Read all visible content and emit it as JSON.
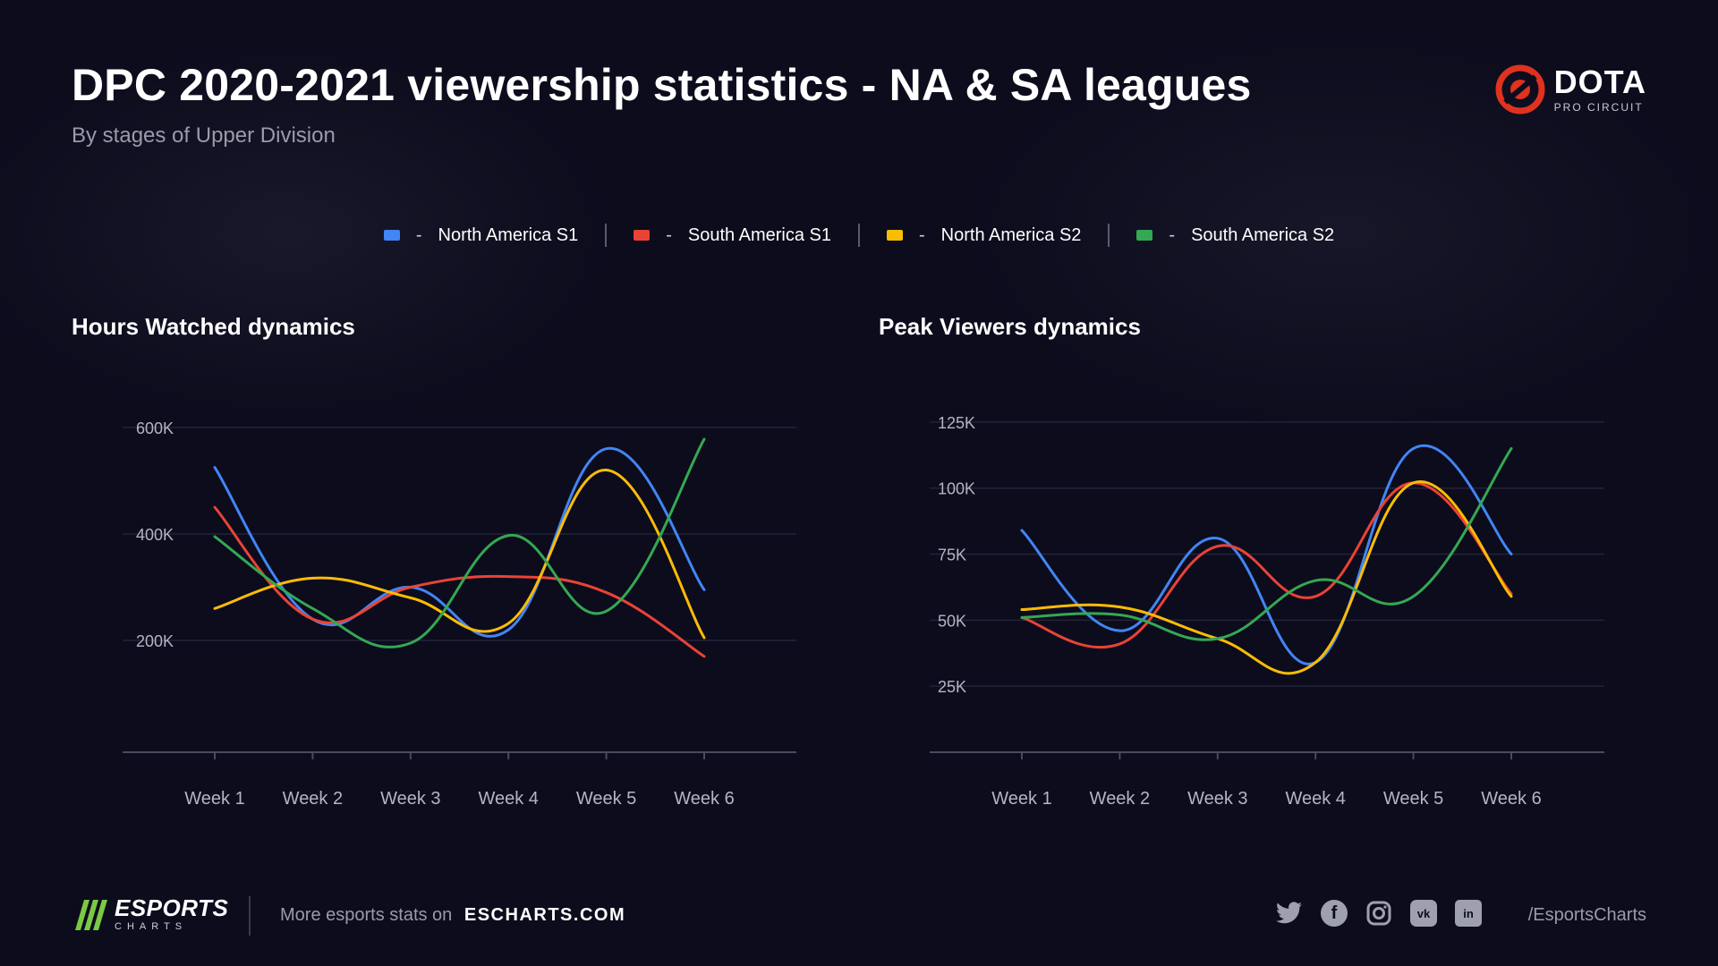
{
  "header": {
    "title": "DPC 2020-2021 viewership statistics - NA & SA leagues",
    "subtitle": "By stages of Upper Division",
    "logo_main": "DOTA",
    "logo_sub": "PRO CIRCUIT"
  },
  "legend": [
    {
      "label": "North America S1",
      "color": "#4285f4"
    },
    {
      "label": "South America S1",
      "color": "#ea4335"
    },
    {
      "label": "North America S2",
      "color": "#fbbc05"
    },
    {
      "label": "South America S2",
      "color": "#34a853"
    }
  ],
  "chart_data": [
    {
      "type": "line",
      "title": "Hours Watched dynamics",
      "categories": [
        "Week 1",
        "Week 2",
        "Week 3",
        "Week 4",
        "Week 5",
        "Week 6"
      ],
      "ylim": [
        -10000,
        620000
      ],
      "yticks": [
        200000,
        400000,
        600000
      ],
      "ytick_labels": [
        "200K",
        "400K",
        "600K"
      ],
      "grid": true,
      "series": [
        {
          "name": "North America S1",
          "color": "#4285f4",
          "values": [
            525000,
            240000,
            300000,
            220000,
            560000,
            295000
          ]
        },
        {
          "name": "South America S1",
          "color": "#ea4335",
          "values": [
            450000,
            240000,
            300000,
            320000,
            290000,
            170000
          ]
        },
        {
          "name": "North America S2",
          "color": "#fbbc05",
          "values": [
            260000,
            317000,
            280000,
            232000,
            520000,
            205000
          ]
        },
        {
          "name": "South America S2",
          "color": "#34a853",
          "values": [
            395000,
            260000,
            195000,
            397000,
            255000,
            578000
          ]
        }
      ]
    },
    {
      "type": "line",
      "title": "Peak Viewers dynamics",
      "categories": [
        "Week 1",
        "Week 2",
        "Week 3",
        "Week 4",
        "Week 5",
        "Week 6"
      ],
      "ylim": [
        0,
        127000
      ],
      "yticks": [
        25000,
        50000,
        75000,
        100000,
        125000
      ],
      "ytick_labels": [
        "25K",
        "50K",
        "75K",
        "100K",
        "125K"
      ],
      "grid": true,
      "series": [
        {
          "name": "North America S1",
          "color": "#4285f4",
          "values": [
            84000,
            46000,
            81000,
            34000,
            115000,
            75000
          ]
        },
        {
          "name": "South America S1",
          "color": "#ea4335",
          "values": [
            51000,
            41000,
            78000,
            59000,
            102000,
            60000
          ]
        },
        {
          "name": "North America S2",
          "color": "#fbbc05",
          "values": [
            54000,
            55000,
            43000,
            34000,
            102000,
            59000
          ]
        },
        {
          "name": "South America S2",
          "color": "#34a853",
          "values": [
            51000,
            52000,
            43000,
            65000,
            59000,
            115000
          ]
        }
      ]
    }
  ],
  "footer": {
    "brand_main": "ESPORTS",
    "brand_sub": "CHARTS",
    "more_text": "More esports stats on",
    "site": "ESCHARTS.COM",
    "handle": "/EsportsCharts",
    "socials": [
      "twitter-icon",
      "facebook-icon",
      "instagram-icon",
      "vk-icon",
      "linkedin-icon"
    ]
  }
}
